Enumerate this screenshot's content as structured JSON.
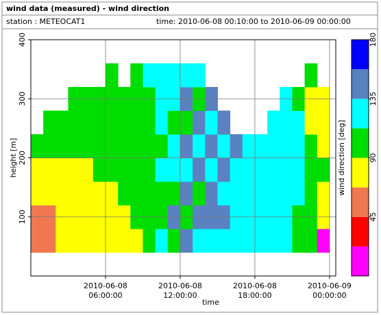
{
  "header": {
    "title": "wind data (measured) - wind direction",
    "station": "station : METEOCAT1",
    "time": "time: 2010-06-08 00:10:00 to 2010-06-09 00:00:00"
  },
  "chart_data": {
    "type": "heatmap",
    "xlabel": "time",
    "ylabel": "height [m]",
    "colorbar_label": "wind direction [deg]",
    "xlim": [
      0,
      24.5
    ],
    "ylim": [
      0,
      400
    ],
    "grid": true,
    "xticks": [
      {
        "value": 6,
        "label": "2010-06-08 06:00:00"
      },
      {
        "value": 12,
        "label": "2010-06-08 12:00:00"
      },
      {
        "value": 18,
        "label": "2010-06-08 18:00:00"
      },
      {
        "value": 24,
        "label": "2010-06-09 00:00:00"
      }
    ],
    "yticks": [
      100,
      200,
      300,
      400
    ],
    "clim": [
      0,
      180
    ],
    "cticks": [
      45,
      90,
      135,
      180
    ],
    "colors": [
      "#ff00ff",
      "#ff0000",
      "#f07850",
      "#ffff00",
      "#00dd00",
      "#00ffff",
      "#5a82c0",
      "#0000ff"
    ],
    "x_edges": [
      0,
      1,
      2,
      3,
      4,
      5,
      6,
      7,
      8,
      9,
      10,
      11,
      12,
      13,
      14,
      15,
      16,
      17,
      18,
      19,
      20,
      21,
      22,
      23,
      24
    ],
    "y_edges": [
      40,
      80,
      120,
      160,
      200,
      240,
      280,
      320,
      360
    ],
    "z": [
      [
        55,
        55,
        80,
        80,
        80,
        80,
        80,
        80,
        80,
        100,
        125,
        100,
        145,
        125,
        125,
        125,
        125,
        125,
        125,
        125,
        125,
        100,
        100,
        10
      ],
      [
        55,
        55,
        80,
        80,
        80,
        80,
        80,
        80,
        100,
        100,
        100,
        145,
        100,
        145,
        145,
        145,
        125,
        125,
        125,
        125,
        125,
        100,
        100,
        80
      ],
      [
        80,
        80,
        80,
        80,
        80,
        80,
        80,
        100,
        100,
        100,
        100,
        100,
        145,
        100,
        145,
        125,
        125,
        125,
        125,
        125,
        125,
        125,
        100,
        80
      ],
      [
        80,
        80,
        80,
        80,
        80,
        100,
        100,
        100,
        100,
        100,
        125,
        125,
        125,
        145,
        125,
        145,
        125,
        125,
        125,
        125,
        125,
        125,
        100,
        100
      ],
      [
        100,
        100,
        100,
        100,
        100,
        100,
        100,
        100,
        100,
        100,
        100,
        125,
        145,
        125,
        145,
        125,
        145,
        125,
        125,
        125,
        125,
        125,
        100,
        80
      ],
      [
        null,
        100,
        100,
        100,
        100,
        100,
        100,
        100,
        100,
        100,
        125,
        100,
        100,
        145,
        125,
        145,
        null,
        null,
        null,
        125,
        125,
        125,
        80,
        80
      ],
      [
        null,
        null,
        null,
        100,
        100,
        100,
        100,
        100,
        100,
        100,
        125,
        125,
        145,
        100,
        145,
        null,
        null,
        null,
        null,
        null,
        125,
        100,
        80,
        80
      ],
      [
        null,
        null,
        null,
        null,
        null,
        null,
        100,
        null,
        100,
        125,
        125,
        125,
        125,
        125,
        null,
        null,
        null,
        null,
        null,
        null,
        null,
        null,
        100,
        null
      ]
    ]
  }
}
